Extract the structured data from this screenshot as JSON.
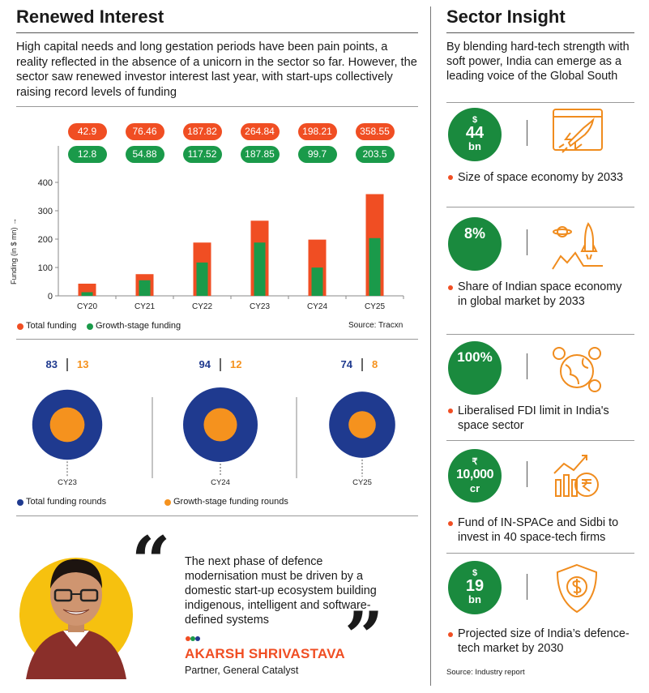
{
  "left": {
    "title": "Renewed Interest",
    "intro": "High capital needs and long gestation periods have been pain points, a reality reflected in the absence of a unicorn in the sector so far. However, the sector saw renewed investor interest last year, with start-ups collectively raising record levels of funding"
  },
  "chart_data": [
    {
      "type": "bar",
      "categories": [
        "CY20",
        "CY21",
        "CY22",
        "CY23",
        "CY24",
        "CY25"
      ],
      "series": [
        {
          "name": "Total funding",
          "color": "#f04e23",
          "values": [
            42.9,
            76.46,
            187.82,
            264.84,
            198.21,
            358.55
          ]
        },
        {
          "name": "Growth-stage funding",
          "color": "#1a9a4a",
          "values": [
            12.8,
            54.88,
            117.52,
            187.85,
            99.7,
            203.5
          ]
        }
      ],
      "total_labels": [
        "42.9",
        "76.46",
        "187.82",
        "264.84",
        "198.21",
        "358.55"
      ],
      "growth_labels": [
        "12.8",
        "54.88",
        "117.52",
        "187.85",
        "99.7",
        "203.5"
      ],
      "ylabel": "Funding (in $ mn) →",
      "yticks": [
        "0",
        "100",
        "200",
        "300",
        "400"
      ],
      "ylim": [
        0,
        400
      ],
      "legend": [
        "Total funding",
        "Growth-stage funding"
      ],
      "source": "Source: Tracxn"
    },
    {
      "type": "bubble",
      "categories": [
        "CY23",
        "CY24",
        "CY25"
      ],
      "total_rounds": [
        83,
        94,
        74
      ],
      "growth_rounds": [
        13,
        12,
        8
      ],
      "total_labels": [
        "83",
        "94",
        "74"
      ],
      "growth_labels": [
        "13",
        "12",
        "8"
      ],
      "legend": [
        "Total funding rounds",
        "Growth-stage funding rounds"
      ],
      "colors": {
        "total": "#1f3a8f",
        "growth": "#f5921e"
      }
    }
  ],
  "quote": {
    "text": "The next phase of defence modernisation must be driven by a domestic start-up ecosystem building indigenous, intelligent and software-defined systems",
    "name": "AKARSH SHRIVASTAVA",
    "role": "Partner, General Catalyst"
  },
  "right": {
    "title": "Sector Insight",
    "intro": "By blending hard-tech strength with soft power, India can emerge as a leading voice of the Global South",
    "stats": [
      {
        "currency": "$",
        "value": "44",
        "unit": "bn",
        "icon": "rocket-launch-icon",
        "text": "Size of space economy by 2033"
      },
      {
        "currency": "",
        "value": "8%",
        "unit": "",
        "icon": "planet-rocket-icon",
        "text": "Share of Indian space economy in global market by 2033"
      },
      {
        "currency": "",
        "value": "100%",
        "unit": "",
        "icon": "globe-money-icon",
        "text": "Liberalised FDI limit in India's space sector"
      },
      {
        "currency": "₹",
        "value": "10,000",
        "unit": "cr",
        "icon": "rupee-growth-icon",
        "text": "Fund of IN-SPACe and Sidbi to invest in 40 space-tech firms"
      },
      {
        "currency": "$",
        "value": "19",
        "unit": "bn",
        "icon": "dollar-shield-icon",
        "text": "Projected size of India’s defence-tech market by 2030"
      }
    ],
    "source": "Source: Industry report"
  }
}
